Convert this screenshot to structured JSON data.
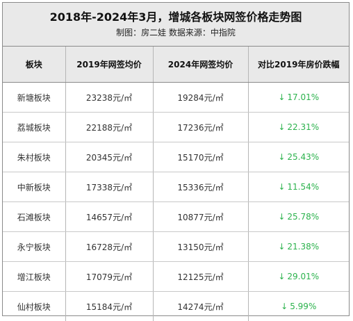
{
  "title": "2018年-2024年3月，增城各板块网签价格走势图",
  "subtitle": "制图：房二娃  数据来源：中指院",
  "table": {
    "headers": [
      "板块",
      "2019年网签均价",
      "2024年网签均价",
      "对比2019年房价跌幅"
    ],
    "rows": [
      {
        "district": "新塘板块",
        "price_2019": "23238元/㎡",
        "price_2024": "19284元/㎡",
        "drop": "17.01%"
      },
      {
        "district": "荔城板块",
        "price_2019": "22188元/㎡",
        "price_2024": "17236元/㎡",
        "drop": "22.31%"
      },
      {
        "district": "朱村板块",
        "price_2019": "20345元/㎡",
        "price_2024": "15170元/㎡",
        "drop": "25.43%"
      },
      {
        "district": "中新板块",
        "price_2019": "17338元/㎡",
        "price_2024": "15336元/㎡",
        "drop": "11.54%"
      },
      {
        "district": "石滩板块",
        "price_2019": "14657元/㎡",
        "price_2024": "10877元/㎡",
        "drop": "25.78%"
      },
      {
        "district": "永宁板块",
        "price_2019": "16728元/㎡",
        "price_2024": "13150元/㎡",
        "drop": "21.38%"
      },
      {
        "district": "增江板块",
        "price_2019": "17079元/㎡",
        "price_2024": "12125元/㎡",
        "drop": "29.01%"
      },
      {
        "district": "仙村板块",
        "price_2019": "15184元/㎡",
        "price_2024": "14274元/㎡",
        "drop": "5.99%"
      }
    ]
  },
  "drop_arrow": "↓",
  "colors": {
    "drop_green": "#2bb24c",
    "header_bg": "#e9e9e9"
  }
}
